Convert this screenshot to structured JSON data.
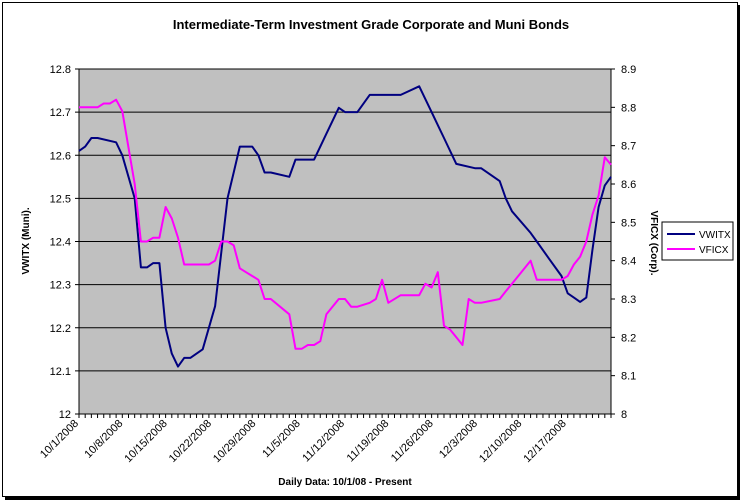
{
  "chart_data": {
    "type": "line",
    "title": "Intermediate-Term Investment Grade Corporate and Muni Bonds",
    "xlabel": "Daily Data:  10/1/08 - Present",
    "ylabel_left": "VWITX (Muni).",
    "ylabel_right": "VFICX (Corp).",
    "x_tick_labels": [
      "10/1/2008",
      "10/8/2008",
      "10/15/2008",
      "10/22/2008",
      "10/29/2008",
      "11/5/2008",
      "11/12/2008",
      "11/19/2008",
      "11/26/2008",
      "12/3/2008",
      "12/10/2008",
      "12/17/2008"
    ],
    "y_left_ticks": [
      "12",
      "12.1",
      "12.2",
      "12.3",
      "12.4",
      "12.5",
      "12.6",
      "12.7",
      "12.8"
    ],
    "y_right_ticks": [
      "8",
      "8.1",
      "8.2",
      "8.3",
      "8.4",
      "8.5",
      "8.6",
      "8.7",
      "8.8",
      "8.9"
    ],
    "ylim_left": [
      12.0,
      12.8
    ],
    "ylim_right": [
      8.0,
      8.9
    ],
    "xlim": [
      0,
      86
    ],
    "legend_placement": "right",
    "grid": "horizontal",
    "plot_background": "#c0c0c0",
    "series": [
      {
        "name": "VWITX",
        "axis": "left",
        "color": "#000080",
        "x": [
          0,
          1,
          2,
          3,
          6,
          7,
          9,
          10,
          11,
          12,
          13,
          14,
          15,
          16,
          17,
          18,
          20,
          22,
          24,
          25,
          26,
          27,
          28,
          29,
          30,
          31,
          34,
          35,
          36,
          37,
          38,
          39,
          40,
          42,
          43,
          44,
          45,
          47,
          50,
          52,
          55,
          57,
          58,
          59,
          61,
          64,
          65,
          68,
          69,
          70,
          73,
          74,
          76,
          78,
          79,
          80,
          81,
          82,
          83,
          84,
          85,
          86
        ],
        "values": [
          12.61,
          12.62,
          12.64,
          12.64,
          12.63,
          12.6,
          12.5,
          12.34,
          12.34,
          12.35,
          12.35,
          12.2,
          12.14,
          12.11,
          12.13,
          12.13,
          12.15,
          12.25,
          12.5,
          12.56,
          12.62,
          12.62,
          12.62,
          12.6,
          12.56,
          12.56,
          12.55,
          12.59,
          12.59,
          12.59,
          12.59,
          12.62,
          12.65,
          12.71,
          12.7,
          12.7,
          12.7,
          12.74,
          12.74,
          12.74,
          12.76,
          12.7,
          12.67,
          12.64,
          12.58,
          12.57,
          12.57,
          12.54,
          12.5,
          12.47,
          12.42,
          12.4,
          12.36,
          12.32,
          12.28,
          12.27,
          12.26,
          12.27,
          12.38,
          12.48,
          12.53,
          12.55
        ]
      },
      {
        "name": "VFICX",
        "axis": "right",
        "color": "#ff00ff",
        "x": [
          0,
          1,
          2,
          3,
          4,
          5,
          6,
          7,
          9,
          10,
          11,
          12,
          13,
          14,
          15,
          16,
          17,
          18,
          20,
          21,
          22,
          23,
          24,
          25,
          26,
          27,
          28,
          29,
          30,
          31,
          34,
          35,
          36,
          37,
          38,
          39,
          40,
          42,
          43,
          44,
          45,
          47,
          48,
          49,
          50,
          52,
          53,
          54,
          55,
          56,
          57,
          58,
          59,
          60,
          61,
          62,
          63,
          64,
          65,
          68,
          69,
          70,
          73,
          74,
          76,
          78,
          79,
          80,
          81,
          82,
          83,
          84,
          85,
          86
        ],
        "values": [
          8.8,
          8.8,
          8.8,
          8.8,
          8.81,
          8.81,
          8.82,
          8.79,
          8.6,
          8.45,
          8.45,
          8.46,
          8.46,
          8.54,
          8.51,
          8.46,
          8.39,
          8.39,
          8.39,
          8.39,
          8.4,
          8.45,
          8.45,
          8.44,
          8.38,
          8.37,
          8.36,
          8.35,
          8.3,
          8.3,
          8.26,
          8.17,
          8.17,
          8.18,
          8.18,
          8.19,
          8.26,
          8.3,
          8.3,
          8.28,
          8.28,
          8.29,
          8.3,
          8.35,
          8.29,
          8.31,
          8.31,
          8.31,
          8.31,
          8.34,
          8.33,
          8.37,
          8.23,
          8.22,
          8.2,
          8.18,
          8.3,
          8.29,
          8.29,
          8.3,
          8.32,
          8.34,
          8.4,
          8.35,
          8.35,
          8.35,
          8.36,
          8.39,
          8.41,
          8.45,
          8.52,
          8.57,
          8.67,
          8.65
        ]
      }
    ]
  }
}
